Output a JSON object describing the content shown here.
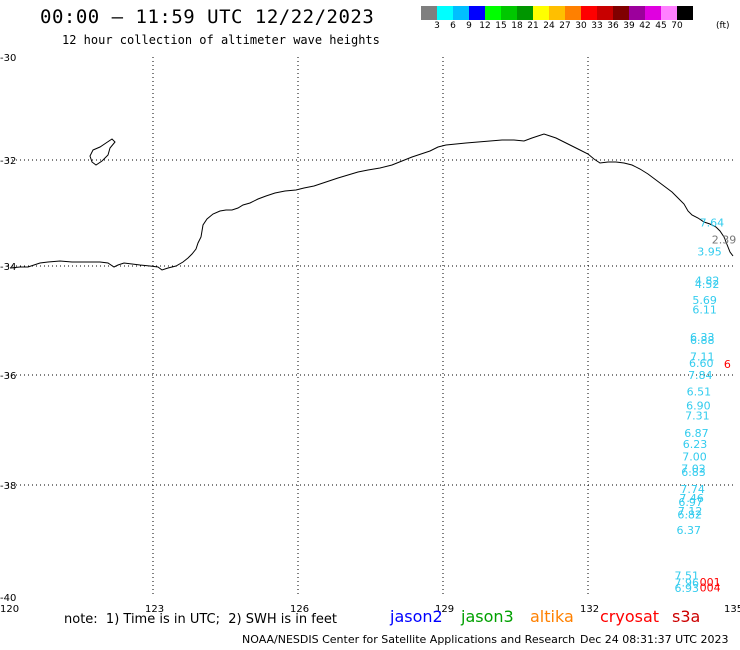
{
  "title": "00:00 – 11:59 UTC 12/22/2023",
  "subtitle": "12 hour collection of altimeter wave heights",
  "colorbar": {
    "unit": "(ft)",
    "colors": [
      "#7f7f7f",
      "#00ffff",
      "#00bfff",
      "#0000ff",
      "#00ff00",
      "#00c800",
      "#009600",
      "#ffff00",
      "#ffbf00",
      "#ff8000",
      "#ff0000",
      "#c80000",
      "#800000",
      "#9c009c",
      "#e000e0",
      "#ff80ff",
      "#000000"
    ],
    "labels": [
      "3",
      "6",
      "9",
      "12",
      "15",
      "18",
      "21",
      "24",
      "27",
      "30",
      "33",
      "36",
      "39",
      "42",
      "45",
      "70"
    ]
  },
  "map": {
    "lon_ticks": [
      "120",
      "123",
      "126",
      "129",
      "132",
      "135"
    ],
    "lat_ticks": [
      "-30",
      "-32",
      "-34",
      "-36",
      "-38",
      "-40"
    ]
  },
  "observations": {
    "jason3_color": "#33ccee",
    "jason3": [
      {
        "label": "7.64",
        "lon": 134.6,
        "lat": -33.18
      },
      {
        "label": "3.95",
        "lon": 134.55,
        "lat": -33.73
      },
      {
        "label": "4.82",
        "lon": 134.5,
        "lat": -34.27
      },
      {
        "label": "4.52",
        "lon": 134.5,
        "lat": -34.33
      },
      {
        "label": "5.69",
        "lon": 134.45,
        "lat": -34.62
      },
      {
        "label": "6.11",
        "lon": 134.45,
        "lat": -34.8
      },
      {
        "label": "6.33",
        "lon": 134.4,
        "lat": -35.3
      },
      {
        "label": "6.88",
        "lon": 134.4,
        "lat": -35.36
      },
      {
        "label": "7.11",
        "lon": 134.4,
        "lat": -35.66
      },
      {
        "label": "6.60",
        "lon": 134.38,
        "lat": -35.78
      },
      {
        "label": "7.84",
        "lon": 134.36,
        "lat": -36.0
      },
      {
        "label": "6.51",
        "lon": 134.33,
        "lat": -36.3
      },
      {
        "label": "6.90",
        "lon": 134.32,
        "lat": -36.55
      },
      {
        "label": "7.31",
        "lon": 134.3,
        "lat": -36.74
      },
      {
        "label": "6.87",
        "lon": 134.28,
        "lat": -37.05
      },
      {
        "label": "6.23",
        "lon": 134.25,
        "lat": -37.25
      },
      {
        "label": "7.00",
        "lon": 134.24,
        "lat": -37.48
      },
      {
        "label": "7.02",
        "lon": 134.22,
        "lat": -37.7
      },
      {
        "label": "6.83",
        "lon": 134.22,
        "lat": -37.76
      },
      {
        "label": "7.74",
        "lon": 134.2,
        "lat": -38.07
      },
      {
        "label": "7.46",
        "lon": 134.18,
        "lat": -38.23
      },
      {
        "label": "6.97",
        "lon": 134.16,
        "lat": -38.3
      },
      {
        "label": "7.12",
        "lon": 134.15,
        "lat": -38.46
      },
      {
        "label": "6.82",
        "lon": 134.14,
        "lat": -38.53
      },
      {
        "label": "6.37",
        "lon": 134.12,
        "lat": -38.8
      },
      {
        "label": "7.51",
        "lon": 134.08,
        "lat": -39.62
      },
      {
        "label": "7.96",
        "lon": 134.08,
        "lat": -39.74
      },
      {
        "label": "6.93",
        "lon": 134.08,
        "lat": -39.84
      }
    ],
    "other_color": "#777777",
    "other": [
      {
        "label": "2.39",
        "lon": 134.85,
        "lat": -33.5
      }
    ],
    "s3a_color": "#ff0000",
    "s3a": [
      {
        "label": "001",
        "lon": 134.6,
        "lat": -39.73
      },
      {
        "label": "004",
        "lon": 134.6,
        "lat": -39.83
      },
      {
        "label": "6",
        "lon": 135.1,
        "lat": -35.8
      }
    ]
  },
  "footer": {
    "note": "note:  1) Time is in UTC;  2) SWH is in feet",
    "satellites": [
      {
        "name": "jason2",
        "color": "#0000ff"
      },
      {
        "name": "jason3",
        "color": "#00a000"
      },
      {
        "name": "altika",
        "color": "#ff8000"
      },
      {
        "name": "cryosat",
        "color": "#ff0000"
      },
      {
        "name": "s3a",
        "color": "#cc0000"
      }
    ],
    "credit": "NOAA/NESDIS Center for Satellite Applications and Research",
    "timestamp": "Dec 24 08:31:37 UTC 2023"
  }
}
